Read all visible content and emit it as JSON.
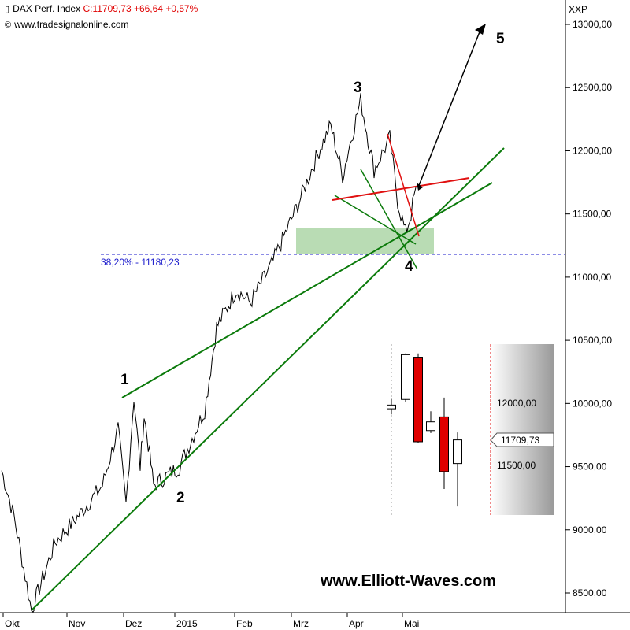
{
  "header": {
    "instrument": "DAX Perf. Index",
    "quote": "C:11709,73 +66,64 +0,57%",
    "source": "www.tradesignalonline.com"
  },
  "axis": {
    "symbol": "XXP",
    "y_ticks": [
      "13000,00",
      "12500,00",
      "12000,00",
      "11500,00",
      "11000,00",
      "10500,00",
      "10000,00",
      "9500,00",
      "9000,00",
      "8500,00"
    ],
    "x_ticks": [
      "Okt",
      "Nov",
      "Dez",
      "2015",
      "Feb",
      "Mrz",
      "Apr",
      "Mai"
    ]
  },
  "wave_labels": [
    "1",
    "2",
    "3",
    "4",
    "5"
  ],
  "fib_label": "38,20% - 11180,23",
  "watermark": "www.Elliott-Waves.com",
  "inset": {
    "y_ticks": [
      "12000,00",
      "11500,00"
    ],
    "last_price": "11709,73"
  },
  "colors": {
    "price": "#000000",
    "trendline": "#0a7a0a",
    "resistance": "#e01010",
    "fib_line": "#1a1acc",
    "support_zone": "#b9dcb4",
    "bear_candle": "#e00000",
    "bull_candle": "#ffffff"
  },
  "chart_data": {
    "type": "line",
    "title": "DAX Perf. Index",
    "y_range": [
      8350,
      13150
    ],
    "fib_level": 11180.23,
    "support_zone": [
      11180,
      11390
    ],
    "series": [
      {
        "name": "DAX Perf. Index",
        "x": [
          "Okt",
          "Okt",
          "Okt",
          "Okt",
          "Okt",
          "Nov",
          "Nov",
          "Nov",
          "Nov",
          "Dez",
          "Dez",
          "Dez",
          "Dez",
          "Dez",
          "2015",
          "2015",
          "2015",
          "Feb",
          "Feb",
          "Feb",
          "Mrz",
          "Mrz",
          "Mrz",
          "Mrz",
          "Apr",
          "Apr",
          "Apr",
          "Apr",
          "Apr",
          "Mai",
          "Mai",
          "Mai"
        ],
        "values": [
          9470,
          9100,
          8700,
          8360,
          8900,
          9100,
          9350,
          9200,
          9500,
          9800,
          10050,
          9900,
          9600,
          9350,
          9500,
          9950,
          10600,
          10900,
          10800,
          11100,
          11600,
          12000,
          12200,
          11800,
          12150,
          12400,
          11850,
          12100,
          11600,
          11350,
          11500,
          11710
        ]
      }
    ],
    "inset_candles": [
      {
        "open": 11955,
        "close": 11985,
        "high": 12035,
        "low": 11910
      },
      {
        "open": 12030,
        "close": 12390,
        "high": 12400,
        "low": 12010
      },
      {
        "open": 12370,
        "close": 11690,
        "high": 12400,
        "low": 11680
      },
      {
        "open": 11780,
        "close": 11850,
        "high": 11935,
        "low": 11760
      },
      {
        "open": 11890,
        "close": 11450,
        "high": 12045,
        "low": 11310
      },
      {
        "open": 11515,
        "close": 11705,
        "high": 11765,
        "low": 11170
      }
    ]
  }
}
